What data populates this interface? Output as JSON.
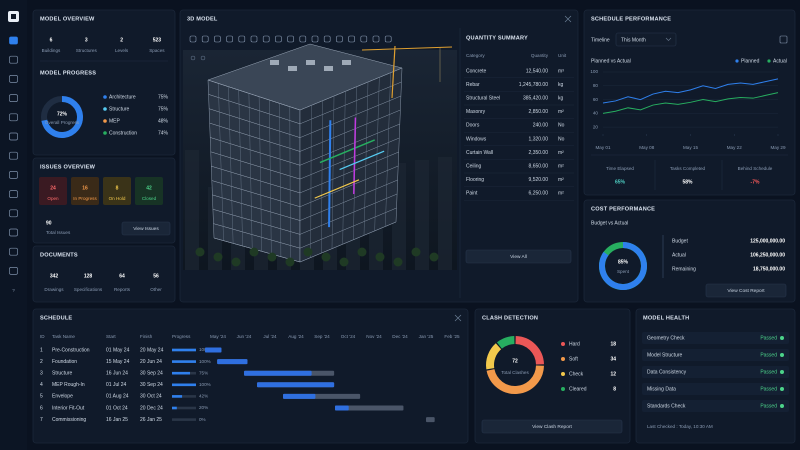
{
  "sidebar": {
    "help": "?"
  },
  "model_overview": {
    "title": "MODEL OVERVIEW",
    "stats": [
      {
        "value": "6",
        "label": "Buildings"
      },
      {
        "value": "3",
        "label": "Structures"
      },
      {
        "value": "2",
        "label": "Levels"
      },
      {
        "value": "523",
        "label": "Spaces"
      }
    ],
    "progress_title": "MODEL PROGRESS",
    "progress": {
      "value": 72,
      "label": "72%",
      "caption": "Overall Progress"
    },
    "legend": [
      {
        "name": "Architecture",
        "value": "75%",
        "color": "#2f80ed"
      },
      {
        "name": "Structure",
        "value": "75%",
        "color": "#56ccf2"
      },
      {
        "name": "MEP",
        "value": "48%",
        "color": "#f2994a"
      },
      {
        "name": "Construction",
        "value": "74%",
        "color": "#27ae60"
      }
    ]
  },
  "issues": {
    "title": "ISSUES OVERVIEW",
    "cards": [
      {
        "value": "24",
        "label": "Open"
      },
      {
        "value": "16",
        "label": "In Progress"
      },
      {
        "value": "8",
        "label": "On Hold"
      },
      {
        "value": "42",
        "label": "Closed"
      }
    ],
    "total": "90",
    "total_label": "Total Issues",
    "button": "View Issues"
  },
  "documents": {
    "title": "DOCUMENTS",
    "items": [
      {
        "value": "342",
        "label": "Drawings"
      },
      {
        "value": "128",
        "label": "Specifications"
      },
      {
        "value": "64",
        "label": "Reports"
      },
      {
        "value": "56",
        "label": "Other"
      }
    ]
  },
  "model_3d": {
    "title": "3D MODEL"
  },
  "quantity_summary": {
    "title": "QUANTITY SUMMARY",
    "columns": [
      "Category",
      "Quantity",
      "Unit"
    ],
    "rows": [
      [
        "Concrete",
        "12,540.00",
        "m³"
      ],
      [
        "Rebar",
        "1,245,780.00",
        "kg"
      ],
      [
        "Structural Steel",
        "385,420.00",
        "kg"
      ],
      [
        "Masonry",
        "2,850.00",
        "m²"
      ],
      [
        "Doors",
        "240.00",
        "No"
      ],
      [
        "Windows",
        "1,320.00",
        "No"
      ],
      [
        "Curtain Wall",
        "2,350.00",
        "m²"
      ],
      [
        "Ceiling",
        "8,650.00",
        "m²"
      ],
      [
        "Flooring",
        "9,520.00",
        "m²"
      ],
      [
        "Paint",
        "6,250.00",
        "m²"
      ]
    ],
    "button": "View All"
  },
  "schedule_performance": {
    "title": "SCHEDULE PERFORMANCE",
    "timeline_label": "Timeline",
    "timeline_value": "This Month",
    "chart": {
      "type": "line",
      "title": "Planned vs Actual",
      "x": [
        1,
        3,
        5,
        7,
        9,
        11,
        13,
        15,
        17,
        19,
        21,
        23,
        25,
        27,
        29
      ],
      "xlim": [
        1,
        29
      ],
      "xticks": [
        {
          "value": 1,
          "label": "May 01"
        },
        {
          "value": 8,
          "label": "May 08"
        },
        {
          "value": 15,
          "label": "May 15"
        },
        {
          "value": 22,
          "label": "May 22"
        },
        {
          "value": 29,
          "label": "May 29"
        }
      ],
      "ylim": [
        10,
        100
      ],
      "yticks": [
        20,
        40,
        60,
        80,
        100
      ],
      "grid": true,
      "legend": "top-right",
      "series": [
        {
          "name": "Planned",
          "color": "#2f80ed",
          "values": [
            55,
            58,
            64,
            60,
            68,
            72,
            70,
            74,
            80,
            76,
            82,
            84,
            82,
            86,
            90
          ]
        },
        {
          "name": "Actual",
          "color": "#27ae60",
          "values": [
            40,
            43,
            48,
            45,
            52,
            55,
            53,
            56,
            60,
            57,
            61,
            63,
            62,
            66,
            70
          ]
        }
      ]
    },
    "metrics": [
      {
        "label": "Time Elapsed",
        "value": "65%"
      },
      {
        "label": "Tasks Completed",
        "value": "58%"
      },
      {
        "label": "Behind Schedule",
        "value": "-7%"
      }
    ]
  },
  "cost_performance": {
    "title": "COST PERFORMANCE",
    "subtitle": "Budget vs Actual",
    "spent": {
      "value": 85,
      "label": "85%",
      "caption": "Spent"
    },
    "rows": [
      [
        "Budget",
        "125,000,000.00"
      ],
      [
        "Actual",
        "106,250,000.00"
      ],
      [
        "Remaining",
        "18,750,000.00"
      ]
    ],
    "button": "View Cost Report"
  },
  "schedule": {
    "title": "SCHEDULE",
    "columns": [
      "ID",
      "Task Name",
      "Start",
      "Finish",
      "Progress"
    ],
    "months": [
      "May '24",
      "Jun '24",
      "Jul '24",
      "Aug '24",
      "Sep '24",
      "Oct '24",
      "Nov '24",
      "Dec '24",
      "Jan '25",
      "Feb '25"
    ],
    "rows": [
      {
        "id": "1",
        "task": "Pre-Construction",
        "start": "01 May 24",
        "finish": "20 May 24",
        "progress": 100,
        "progress_label": "100%"
      },
      {
        "id": "2",
        "task": "Foundation",
        "start": "15 May 24",
        "finish": "20 Jun 24",
        "progress": 100,
        "progress_label": "100%"
      },
      {
        "id": "3",
        "task": "Structure",
        "start": "16 Jun 24",
        "finish": "30 Sep 24",
        "progress": 75,
        "progress_label": "75%"
      },
      {
        "id": "4",
        "task": "MEP Rough-In",
        "start": "01 Jul 24",
        "finish": "30 Sep 24",
        "progress": 100,
        "progress_label": "100%"
      },
      {
        "id": "5",
        "task": "Envelope",
        "start": "01 Aug 24",
        "finish": "30 Oct 24",
        "progress": 42,
        "progress_label": "42%"
      },
      {
        "id": "6",
        "task": "Interior Fit-Out",
        "start": "01 Oct 24",
        "finish": "20 Dec 24",
        "progress": 20,
        "progress_label": "20%"
      },
      {
        "id": "7",
        "task": "Commissioning",
        "start": "16 Jan 25",
        "finish": "26 Jan 25",
        "progress": 0,
        "progress_label": "0%"
      }
    ]
  },
  "clash_detection": {
    "title": "CLASH DETECTION",
    "total": 72,
    "total_label": "Total Clashes",
    "items": [
      {
        "name": "Hard",
        "value": 18,
        "color": "#eb5757"
      },
      {
        "name": "Soft",
        "value": 34,
        "color": "#f2994a"
      },
      {
        "name": "Check",
        "value": 12,
        "color": "#f2c94c"
      },
      {
        "name": "Cleared",
        "value": 8,
        "color": "#27ae60"
      }
    ],
    "button": "View Clash Report"
  },
  "model_health": {
    "title": "MODEL HEALTH",
    "checks": [
      {
        "name": "Geometry Check",
        "status": "Passed"
      },
      {
        "name": "Model Structure",
        "status": "Passed"
      },
      {
        "name": "Data Consistency",
        "status": "Passed"
      },
      {
        "name": "Missing Data",
        "status": "Passed"
      },
      {
        "name": "Standards Check",
        "status": "Passed"
      }
    ],
    "last_checked": "Last Checked : Today, 10:30 AM"
  }
}
